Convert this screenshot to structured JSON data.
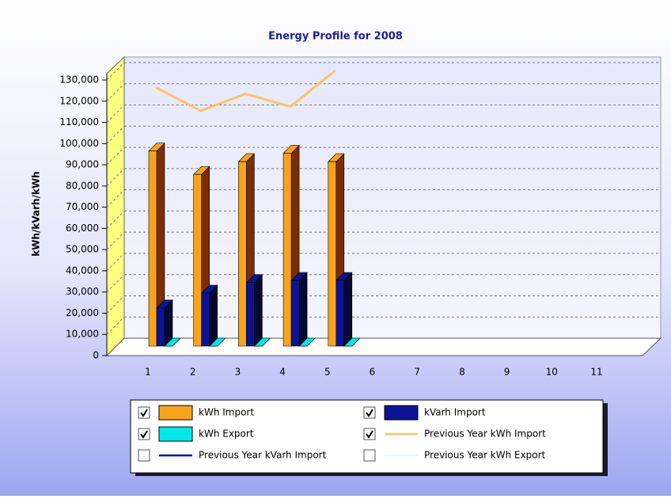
{
  "chart_data": {
    "type": "bar",
    "title": "Energy Profile for 2008",
    "y_label": "kWh/kVarh/kWh",
    "categories": [
      "1",
      "2",
      "3",
      "4",
      "5",
      "6",
      "7",
      "8",
      "9",
      "10",
      "11"
    ],
    "series": [
      {
        "name": "kWh Import",
        "kind": "bar",
        "color": "#f8a31c",
        "side_color": "#7a2e05",
        "checked": true,
        "values": [
          92000,
          81000,
          87000,
          91000,
          87000,
          null,
          null,
          null,
          null,
          null,
          null
        ]
      },
      {
        "name": "kVarh Import",
        "kind": "bar",
        "color": "#0c1496",
        "side_color": "#050830",
        "checked": true,
        "values": [
          18000,
          25000,
          30000,
          31000,
          31000,
          null,
          null,
          null,
          null,
          null,
          null
        ]
      },
      {
        "name": "kWh Export",
        "kind": "bar",
        "color": "#00e8e8",
        "side_color": "#007070",
        "checked": true,
        "values": [
          0,
          0,
          0,
          0,
          0,
          null,
          null,
          null,
          null,
          null,
          null
        ]
      },
      {
        "name": "Previous Year kWh Import",
        "kind": "line",
        "color": "#fbc465",
        "checked": true,
        "values": [
          122000,
          111000,
          119000,
          113000,
          130000,
          null,
          null,
          null,
          null,
          null,
          null
        ]
      },
      {
        "name": "Previous Year kVarh Import",
        "kind": "line",
        "color": "#0010c8",
        "checked": false,
        "values": [
          null,
          null,
          null,
          null,
          null,
          null,
          null,
          null,
          null,
          null,
          null
        ]
      },
      {
        "name": "Previous Year kWh Export",
        "kind": "line",
        "color": "#dffcff",
        "checked": false,
        "values": [
          null,
          null,
          null,
          null,
          null,
          null,
          null,
          null,
          null,
          null,
          null
        ]
      }
    ],
    "ylim": [
      0,
      130000
    ],
    "yticks": [
      {
        "value": 0,
        "label": "0"
      },
      {
        "value": 10000,
        "label": "10,000"
      },
      {
        "value": 20000,
        "label": "20,000"
      },
      {
        "value": 30000,
        "label": "30,000"
      },
      {
        "value": 40000,
        "label": "40,000"
      },
      {
        "value": 50000,
        "label": "50,000"
      },
      {
        "value": 60000,
        "label": "60,000"
      },
      {
        "value": 70000,
        "label": "70,000"
      },
      {
        "value": 80000,
        "label": "80,000"
      },
      {
        "value": 90000,
        "label": "90,000"
      },
      {
        "value": 100000,
        "label": "100,000"
      },
      {
        "value": 110000,
        "label": "110,000"
      },
      {
        "value": 120000,
        "label": "120,000"
      },
      {
        "value": 130000,
        "label": "130,000"
      }
    ],
    "grid": true
  }
}
